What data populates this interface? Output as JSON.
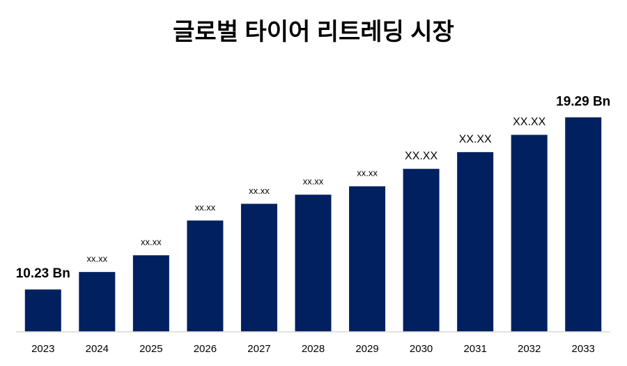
{
  "chart_data": {
    "type": "bar",
    "title": "글로벌 타이어 리트레딩 시장",
    "categories": [
      "2023",
      "2024",
      "2025",
      "2026",
      "2027",
      "2028",
      "2029",
      "2030",
      "2031",
      "2032",
      "2033"
    ],
    "values": [
      10.23,
      11.15,
      12.03,
      13.86,
      14.74,
      15.22,
      15.66,
      16.58,
      17.46,
      18.37,
      19.29
    ],
    "value_labels": [
      "10.23 Bn",
      "xx.xx",
      "xx.xx",
      "xx.xx",
      "xx.xx",
      "xx.xx",
      "xx.xx",
      "XX.XX",
      "XX.XX",
      "XX.XX",
      "19.29 Bn"
    ],
    "color": "#002060",
    "ylim": [
      8,
      20
    ]
  }
}
